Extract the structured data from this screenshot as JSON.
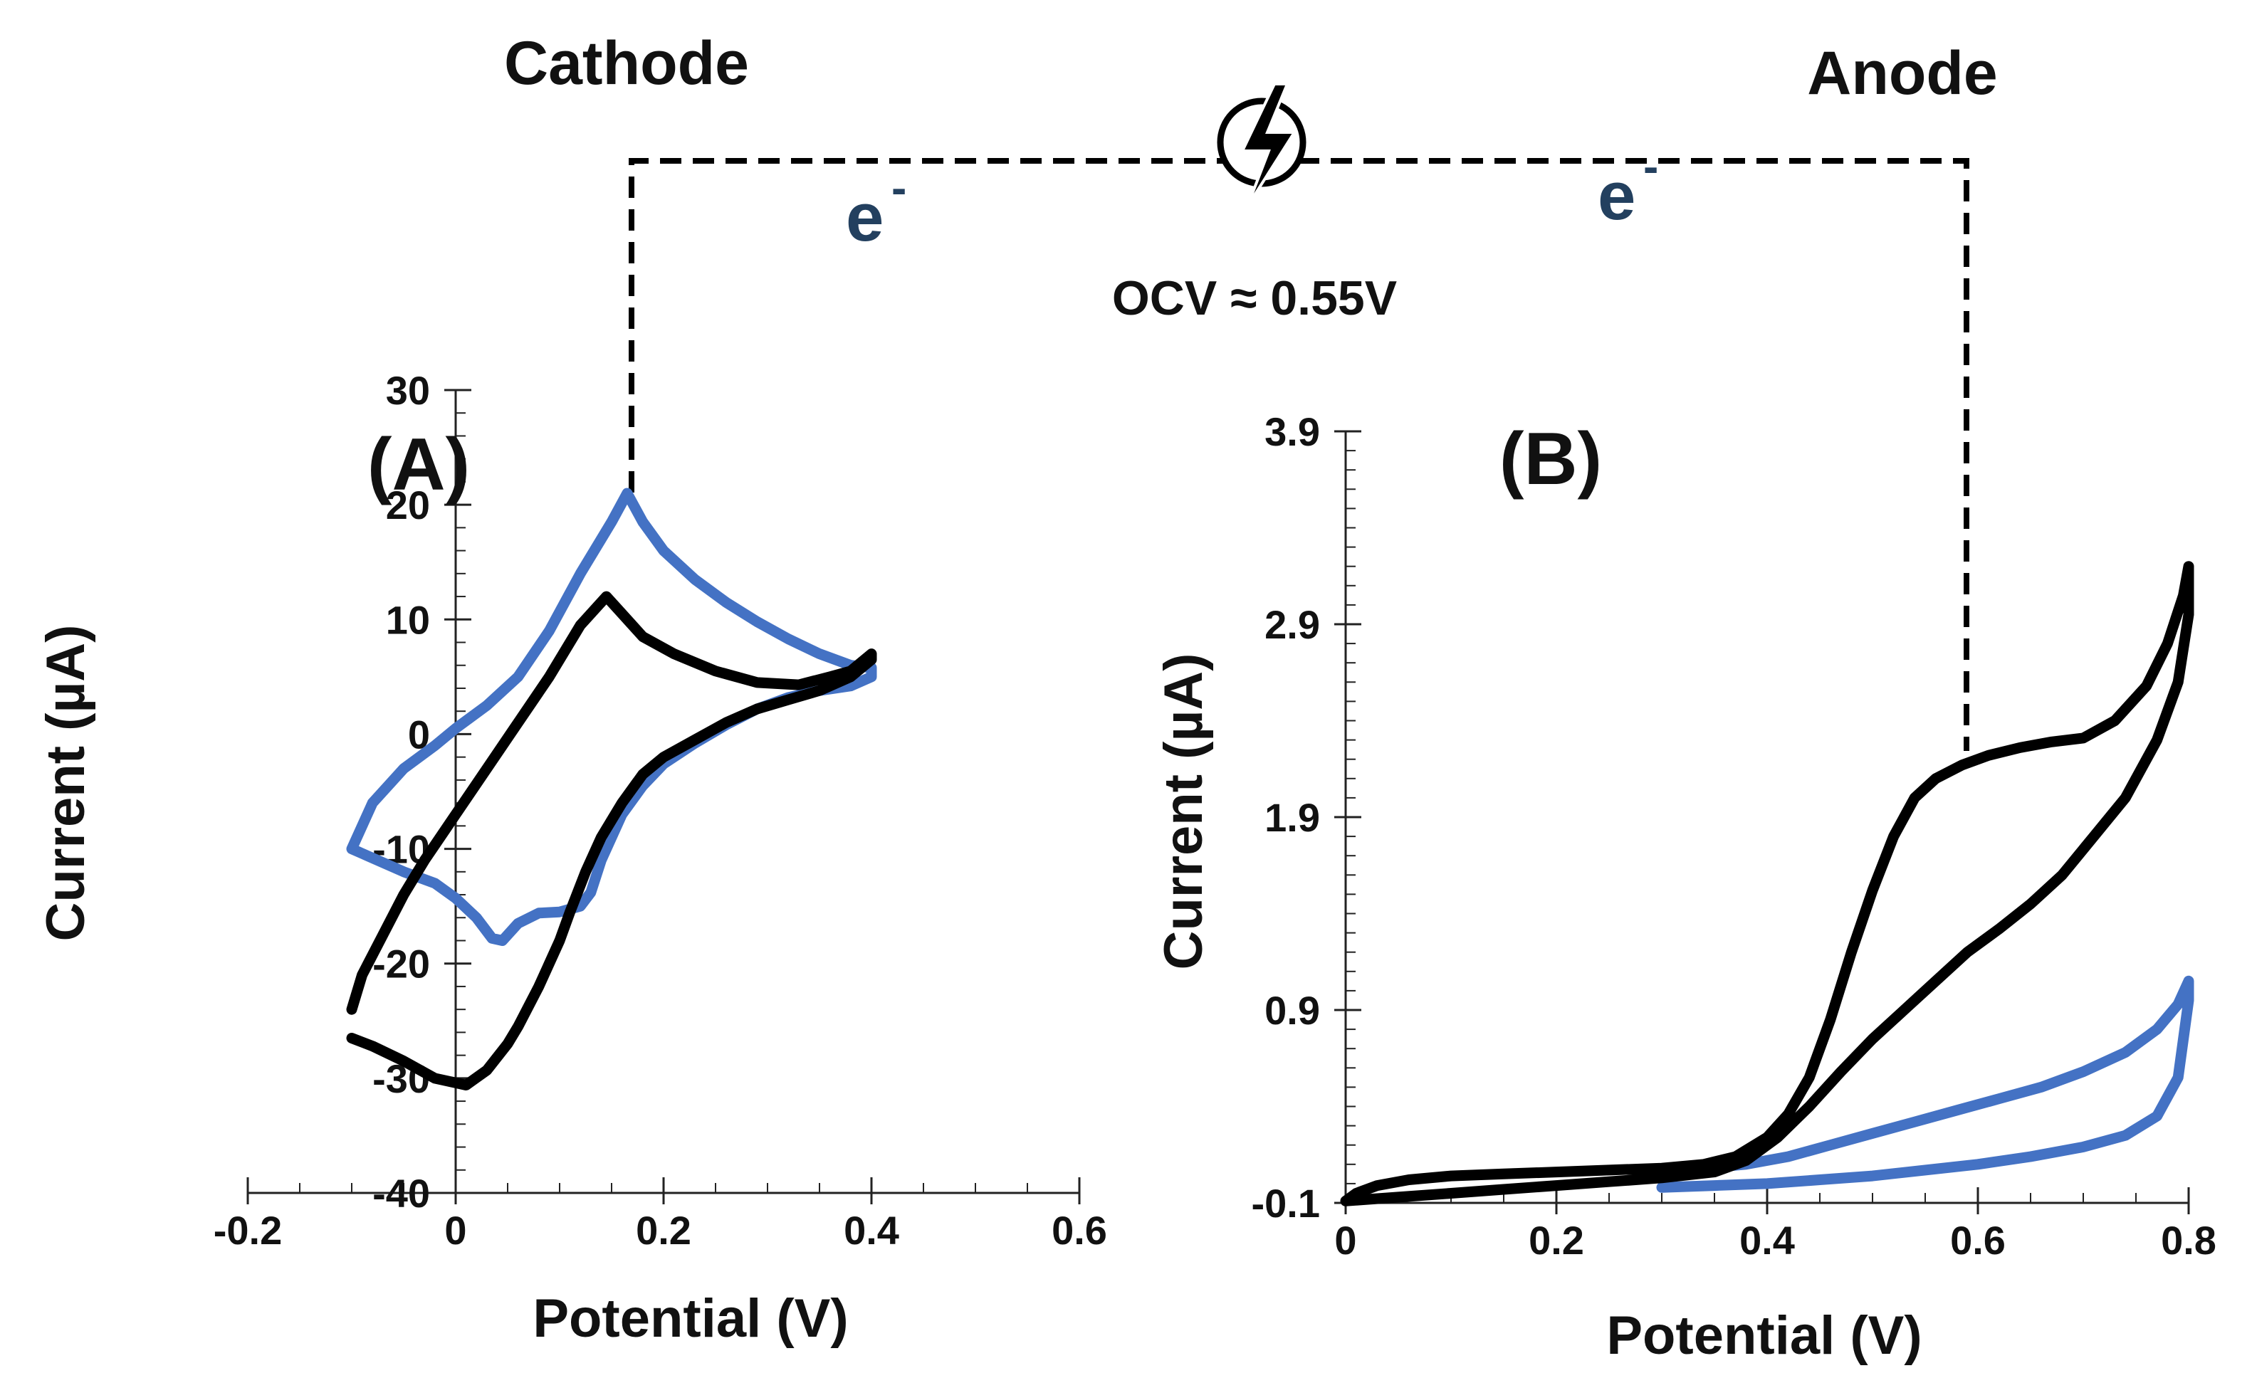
{
  "figure": {
    "cathode_label": "Cathode",
    "anode_label": "Anode",
    "electron_left": "e",
    "electron_right": "e",
    "electron_superscript": "-",
    "ocv_label": "OCV ≈ 0.55V",
    "bolt_icon": "lightning-bolt-icon"
  },
  "colors": {
    "blue": "#4472C4",
    "black": "#000000",
    "axis": "#222222"
  },
  "chart_data": [
    {
      "type": "line",
      "panel_label": "(A)",
      "xlabel": "Potential (V)",
      "ylabel": "Current (µA)",
      "xlim": [
        -0.2,
        0.6
      ],
      "ylim": [
        -40,
        30
      ],
      "xticks": [
        -0.2,
        0,
        0.2,
        0.4,
        0.6
      ],
      "xtick_labels": [
        "-0.2",
        "0",
        "0.2",
        "0.4",
        "0.6"
      ],
      "yticks": [
        -40,
        -30,
        -20,
        -10,
        0,
        10,
        20,
        30
      ],
      "ytick_labels": [
        "-40",
        "-30",
        "-20",
        "-10",
        "0",
        "10",
        "20",
        "30"
      ],
      "connector_at": {
        "x": 0.165,
        "y": 21
      },
      "series": [
        {
          "name": "blue CV",
          "color": "#4472C4",
          "points": [
            [
              -0.1,
              -10
            ],
            [
              -0.08,
              -6
            ],
            [
              -0.05,
              -3
            ],
            [
              -0.02,
              -1
            ],
            [
              0.0,
              0.5
            ],
            [
              0.03,
              2.5
            ],
            [
              0.06,
              5
            ],
            [
              0.09,
              9
            ],
            [
              0.12,
              14
            ],
            [
              0.15,
              18.5
            ],
            [
              0.165,
              21
            ],
            [
              0.18,
              18.5
            ],
            [
              0.2,
              16
            ],
            [
              0.23,
              13.5
            ],
            [
              0.26,
              11.5
            ],
            [
              0.29,
              9.8
            ],
            [
              0.32,
              8.3
            ],
            [
              0.35,
              7
            ],
            [
              0.38,
              6
            ],
            [
              0.4,
              5.8
            ],
            [
              0.4,
              5
            ],
            [
              0.38,
              4.2
            ],
            [
              0.35,
              3.8
            ],
            [
              0.32,
              3.2
            ],
            [
              0.29,
              2.2
            ],
            [
              0.26,
              0.8
            ],
            [
              0.23,
              -0.8
            ],
            [
              0.2,
              -2.6
            ],
            [
              0.18,
              -4.5
            ],
            [
              0.16,
              -7
            ],
            [
              0.14,
              -11
            ],
            [
              0.13,
              -13.8
            ],
            [
              0.12,
              -15
            ],
            [
              0.1,
              -15.5
            ],
            [
              0.08,
              -15.6
            ],
            [
              0.06,
              -16.5
            ],
            [
              0.045,
              -18
            ],
            [
              0.035,
              -17.8
            ],
            [
              0.02,
              -16
            ],
            [
              0.0,
              -14.3
            ],
            [
              -0.02,
              -13
            ],
            [
              -0.05,
              -12
            ],
            [
              -0.08,
              -10.8
            ],
            [
              -0.1,
              -10
            ]
          ]
        },
        {
          "name": "black CV",
          "color": "#000000",
          "points": [
            [
              -0.1,
              -24
            ],
            [
              -0.09,
              -21
            ],
            [
              -0.07,
              -17.5
            ],
            [
              -0.05,
              -14
            ],
            [
              -0.03,
              -11
            ],
            [
              0.0,
              -7
            ],
            [
              0.03,
              -3
            ],
            [
              0.06,
              1
            ],
            [
              0.09,
              5
            ],
            [
              0.12,
              9.5
            ],
            [
              0.145,
              12
            ],
            [
              0.16,
              10.5
            ],
            [
              0.18,
              8.5
            ],
            [
              0.21,
              7
            ],
            [
              0.25,
              5.5
            ],
            [
              0.29,
              4.5
            ],
            [
              0.33,
              4.3
            ],
            [
              0.36,
              5
            ],
            [
              0.38,
              5.5
            ],
            [
              0.4,
              7
            ],
            [
              0.4,
              6.5
            ],
            [
              0.38,
              5
            ],
            [
              0.35,
              3.8
            ],
            [
              0.32,
              3
            ],
            [
              0.29,
              2.2
            ],
            [
              0.26,
              1
            ],
            [
              0.23,
              -0.5
            ],
            [
              0.2,
              -2
            ],
            [
              0.18,
              -3.5
            ],
            [
              0.16,
              -6
            ],
            [
              0.14,
              -9
            ],
            [
              0.125,
              -12
            ],
            [
              0.11,
              -15.5
            ],
            [
              0.1,
              -18
            ],
            [
              0.08,
              -22
            ],
            [
              0.06,
              -25.5
            ],
            [
              0.05,
              -27
            ],
            [
              0.03,
              -29.3
            ],
            [
              0.01,
              -30.6
            ],
            [
              -0.02,
              -30
            ],
            [
              -0.05,
              -28.5
            ],
            [
              -0.08,
              -27.2
            ],
            [
              -0.1,
              -26.5
            ]
          ]
        }
      ]
    },
    {
      "type": "line",
      "panel_label": "(B)",
      "xlabel": "Potential (V)",
      "ylabel": "Current (µA)",
      "xlim": [
        0,
        0.8
      ],
      "ylim": [
        -0.1,
        3.9
      ],
      "xticks": [
        0,
        0.2,
        0.4,
        0.6,
        0.8
      ],
      "xtick_labels": [
        "0",
        "0.2",
        "0.4",
        "0.6",
        "0.8"
      ],
      "yticks": [
        -0.1,
        0.9,
        1.9,
        2.9,
        3.9
      ],
      "ytick_labels": [
        "-0.1",
        "0.9",
        "1.9",
        "2.9",
        "3.9"
      ],
      "connector_at": {
        "x": 0.585,
        "y": 2.17
      },
      "series": [
        {
          "name": "blue CV",
          "color": "#4472C4",
          "points": [
            [
              0.34,
              0.08
            ],
            [
              0.38,
              0.1
            ],
            [
              0.42,
              0.14
            ],
            [
              0.46,
              0.2
            ],
            [
              0.5,
              0.26
            ],
            [
              0.54,
              0.32
            ],
            [
              0.58,
              0.38
            ],
            [
              0.62,
              0.44
            ],
            [
              0.66,
              0.5
            ],
            [
              0.7,
              0.58
            ],
            [
              0.74,
              0.68
            ],
            [
              0.77,
              0.8
            ],
            [
              0.79,
              0.93
            ],
            [
              0.8,
              1.05
            ],
            [
              0.8,
              0.95
            ],
            [
              0.79,
              0.55
            ],
            [
              0.77,
              0.35
            ],
            [
              0.74,
              0.25
            ],
            [
              0.7,
              0.19
            ],
            [
              0.65,
              0.14
            ],
            [
              0.6,
              0.1
            ],
            [
              0.55,
              0.07
            ],
            [
              0.5,
              0.04
            ],
            [
              0.45,
              0.02
            ],
            [
              0.4,
              0.0
            ],
            [
              0.35,
              -0.01
            ],
            [
              0.3,
              -0.02
            ]
          ]
        },
        {
          "name": "black CV",
          "color": "#000000",
          "points": [
            [
              0.0,
              -0.09
            ],
            [
              0.01,
              -0.05
            ],
            [
              0.03,
              -0.01
            ],
            [
              0.06,
              0.02
            ],
            [
              0.1,
              0.04
            ],
            [
              0.15,
              0.05
            ],
            [
              0.2,
              0.06
            ],
            [
              0.25,
              0.07
            ],
            [
              0.3,
              0.08
            ],
            [
              0.34,
              0.1
            ],
            [
              0.37,
              0.14
            ],
            [
              0.4,
              0.24
            ],
            [
              0.42,
              0.36
            ],
            [
              0.44,
              0.55
            ],
            [
              0.46,
              0.85
            ],
            [
              0.48,
              1.2
            ],
            [
              0.5,
              1.52
            ],
            [
              0.52,
              1.8
            ],
            [
              0.54,
              2.0
            ],
            [
              0.56,
              2.1
            ],
            [
              0.585,
              2.17
            ],
            [
              0.61,
              2.22
            ],
            [
              0.64,
              2.26
            ],
            [
              0.67,
              2.29
            ],
            [
              0.7,
              2.31
            ],
            [
              0.73,
              2.4
            ],
            [
              0.76,
              2.58
            ],
            [
              0.78,
              2.8
            ],
            [
              0.795,
              3.05
            ],
            [
              0.8,
              3.2
            ],
            [
              0.8,
              2.95
            ],
            [
              0.79,
              2.6
            ],
            [
              0.77,
              2.3
            ],
            [
              0.74,
              2.0
            ],
            [
              0.71,
              1.8
            ],
            [
              0.68,
              1.6
            ],
            [
              0.65,
              1.45
            ],
            [
              0.62,
              1.32
            ],
            [
              0.59,
              1.2
            ],
            [
              0.56,
              1.05
            ],
            [
              0.53,
              0.9
            ],
            [
              0.5,
              0.75
            ],
            [
              0.47,
              0.58
            ],
            [
              0.44,
              0.4
            ],
            [
              0.41,
              0.24
            ],
            [
              0.38,
              0.12
            ],
            [
              0.35,
              0.06
            ],
            [
              0.3,
              0.03
            ],
            [
              0.25,
              0.01
            ],
            [
              0.2,
              -0.01
            ],
            [
              0.15,
              -0.03
            ],
            [
              0.1,
              -0.05
            ],
            [
              0.05,
              -0.07
            ],
            [
              0.0,
              -0.09
            ]
          ]
        }
      ]
    }
  ]
}
